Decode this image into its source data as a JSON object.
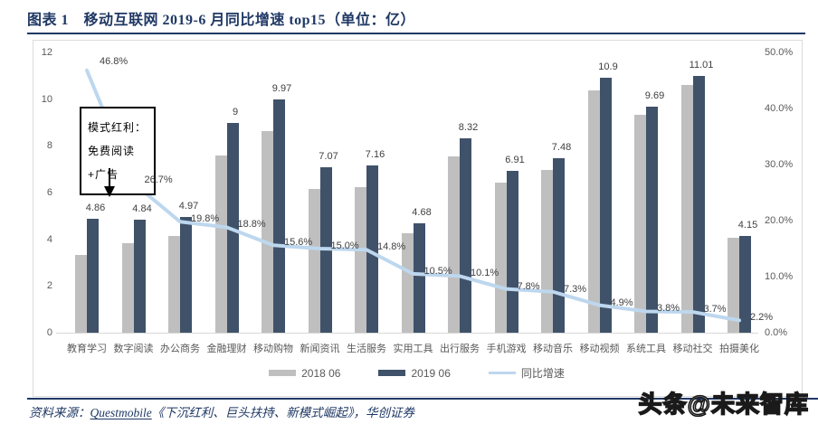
{
  "header": {
    "title": "图表 1　移动互联网 2019-6 月同比增速 top15（单位：亿）"
  },
  "chart_data": {
    "type": "bar",
    "subtype": "grouped bars with secondary-axis line",
    "title": "移动互联网 2019-6 月同比增速 top15（单位：亿）",
    "categories": [
      "教育学习",
      "数字阅读",
      "办公商务",
      "金融理财",
      "移动购物",
      "新闻资讯",
      "生活服务",
      "实用工具",
      "出行服务",
      "手机游戏",
      "移动音乐",
      "移动视频",
      "系统工具",
      "移动社交",
      "拍摄美化"
    ],
    "series": [
      {
        "name": "2018 06",
        "type": "bar",
        "color": "#BFBFBF",
        "values": [
          3.31,
          3.82,
          4.15,
          7.58,
          8.62,
          6.15,
          6.24,
          4.24,
          7.56,
          6.41,
          6.97,
          10.39,
          9.34,
          10.62,
          4.06
        ]
      },
      {
        "name": "2019 06",
        "type": "bar",
        "color": "#3F5269",
        "values": [
          4.86,
          4.84,
          4.97,
          9,
          9.97,
          7.07,
          7.16,
          4.68,
          8.32,
          6.91,
          7.48,
          10.9,
          9.69,
          11.01,
          4.15
        ],
        "labels": [
          "4.86",
          "4.84",
          "4.97",
          "9",
          "9.97",
          "7.07",
          "7.16",
          "4.68",
          "8.32",
          "6.91",
          "7.48",
          "10.9",
          "9.69",
          "11.01",
          "4.15"
        ]
      },
      {
        "name": "同比增速",
        "type": "line",
        "axis": "right",
        "color": "#BDD7EE",
        "values": [
          46.8,
          26.7,
          19.8,
          18.8,
          15.6,
          15.0,
          14.8,
          10.5,
          10.1,
          7.8,
          7.3,
          4.9,
          3.8,
          3.7,
          2.2
        ],
        "labels": [
          "46.8%",
          "26.7%",
          "19.8%",
          "18.8%",
          "15.6%",
          "15.0%",
          "14.8%",
          "10.5%",
          "10.1%",
          "7.8%",
          "7.3%",
          "4.9%",
          "3.8%",
          "3.7%",
          "2.2%"
        ]
      }
    ],
    "left_axis": {
      "ticks": [
        "0",
        "2",
        "4",
        "6",
        "8",
        "10",
        "12"
      ],
      "min": 0,
      "max": 12
    },
    "right_axis": {
      "ticks": [
        "0.0%",
        "10.0%",
        "20.0%",
        "30.0%",
        "40.0%",
        "50.0%"
      ],
      "min": 0,
      "max": 50
    },
    "legend": {
      "position": "bottom",
      "entries": [
        "2018 06",
        "2019 06",
        "同比增速"
      ]
    },
    "grid": false,
    "annotation": {
      "text": "模式红利：免费阅读+广告"
    }
  },
  "footer": {
    "source_prefix": "资料来源：",
    "source_link": "Questmobile",
    "source_rest": "《下沉红利、巨头扶持、新模式崛起》，华创证券",
    "watermark": "头条@未来智库"
  },
  "colors": {
    "accent_navy": "#1F3864",
    "bar_2018": "#BFBFBF",
    "bar_2019": "#3F5269",
    "growth_line": "#BDD7EE",
    "axis_text": "#595959",
    "frame_border": "#DCDCDC"
  }
}
